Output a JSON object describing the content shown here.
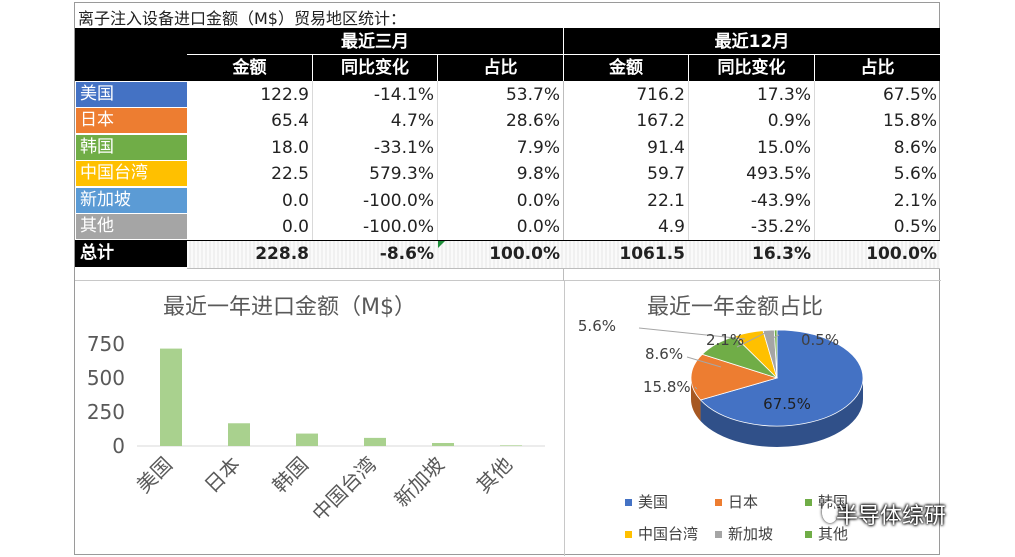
{
  "title": "离子注入设备进口金额（M$）贸易地区统计：",
  "table": {
    "groups": [
      "最近三月",
      "最近12月"
    ],
    "columns": [
      "金额",
      "同比变化",
      "占比",
      "金额",
      "同比变化",
      "占比"
    ],
    "rows": [
      {
        "name": "美国",
        "color": "#4472c4",
        "cells": [
          "122.9",
          "-14.1%",
          "53.7%",
          "716.2",
          "17.3%",
          "67.5%"
        ]
      },
      {
        "name": "日本",
        "color": "#ed7d31",
        "cells": [
          "65.4",
          "4.7%",
          "28.6%",
          "167.2",
          "0.9%",
          "15.8%"
        ]
      },
      {
        "name": "韩国",
        "color": "#70ad47",
        "cells": [
          "18.0",
          "-33.1%",
          "7.9%",
          "91.4",
          "15.0%",
          "8.6%"
        ]
      },
      {
        "name": "中国台湾",
        "color": "#ffc000",
        "cells": [
          "22.5",
          "579.3%",
          "9.8%",
          "59.7",
          "493.5%",
          "5.6%"
        ]
      },
      {
        "name": "新加坡",
        "color": "#5b9bd5",
        "cells": [
          "0.0",
          "-100.0%",
          "0.0%",
          "22.1",
          "-43.9%",
          "2.1%"
        ]
      },
      {
        "name": "其他",
        "color": "#a5a5a5",
        "cells": [
          "0.0",
          "-100.0%",
          "0.0%",
          "4.9",
          "-35.2%",
          "0.5%"
        ]
      }
    ],
    "total": {
      "name": "总计",
      "cells": [
        "228.8",
        "-8.6%",
        "100.0%",
        "1061.5",
        "16.3%",
        "100.0%"
      ]
    }
  },
  "chart_data": [
    {
      "type": "bar",
      "title": "最近一年进口金额（M$）",
      "categories": [
        "美国",
        "日本",
        "韩国",
        "中国台湾",
        "新加坡",
        "其他"
      ],
      "values": [
        716.2,
        167.2,
        91.4,
        59.7,
        22.1,
        4.9
      ],
      "yticks": [
        "0",
        "250",
        "500",
        "750"
      ],
      "ylim": [
        0,
        800
      ],
      "bar_color": "#a9d18e",
      "grid": false
    },
    {
      "type": "pie",
      "title": "最近一年金额占比",
      "labels": [
        "美国",
        "日本",
        "韩国",
        "中国台湾",
        "新加坡",
        "其他"
      ],
      "values": [
        67.5,
        15.8,
        8.6,
        5.6,
        2.1,
        0.5
      ],
      "value_labels": [
        "67.5%",
        "15.8%",
        "8.6%",
        "5.6%",
        "2.1%",
        "0.5%"
      ],
      "colors": [
        "#4472c4",
        "#ed7d31",
        "#70ad47",
        "#ffc000",
        "#a5a5a5",
        "#70ad47"
      ],
      "legend_position": "bottom"
    }
  ],
  "watermark": "半导体综研"
}
